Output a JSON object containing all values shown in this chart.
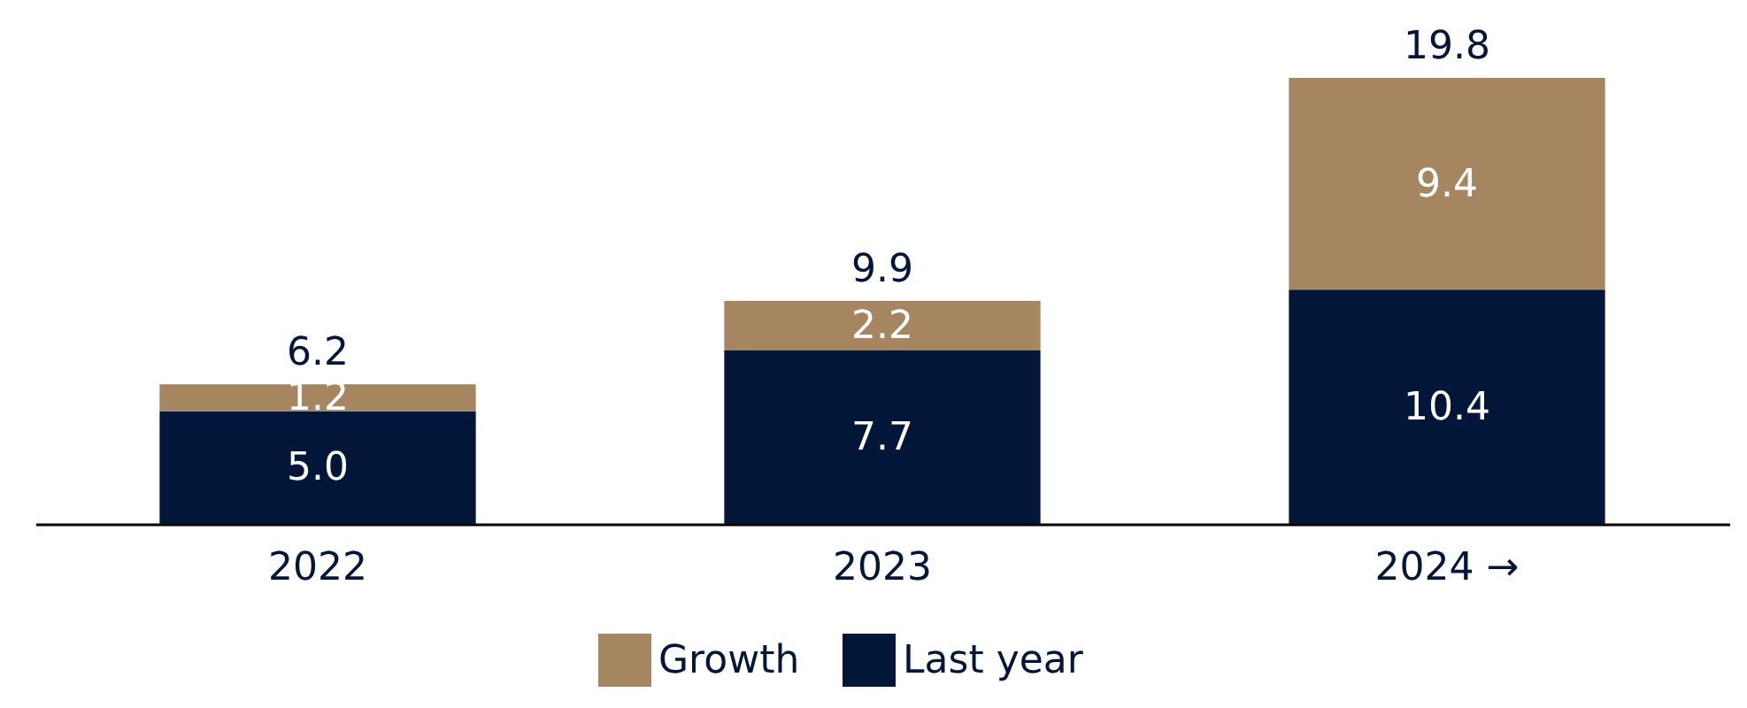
{
  "chart_data": {
    "type": "bar",
    "stacked": true,
    "legend": "bottom",
    "grid": false,
    "categories": [
      "2022",
      "2023",
      "2024 →"
    ],
    "series": [
      {
        "name": "Last year",
        "color": "#011638",
        "values": [
          5.0,
          7.7,
          10.4
        ],
        "value_labels": [
          "5.0",
          "7.7",
          "10.4"
        ]
      },
      {
        "name": "Growth",
        "color": "#a68660",
        "values": [
          1.2,
          2.2,
          9.4
        ],
        "value_labels": [
          "1.2",
          "2.2",
          "9.4"
        ]
      }
    ],
    "totals": [
      "6.2",
      "9.9",
      "19.8"
    ]
  }
}
